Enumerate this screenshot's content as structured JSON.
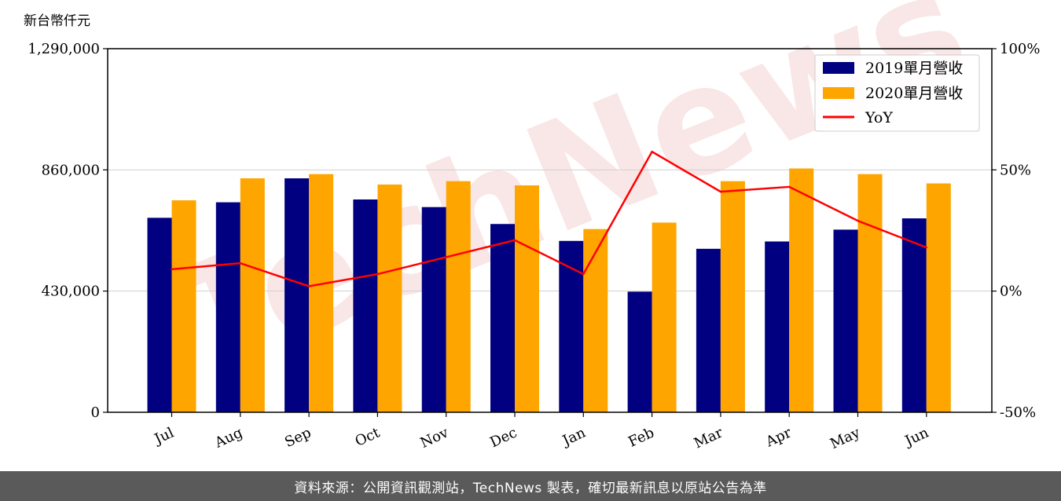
{
  "watermark": "TechNews",
  "footer": {
    "text": "資料來源：公開資訊觀測站，TechNews 製表，確切最新訊息以原站公告為準"
  },
  "colors": {
    "bar2019": "#000080",
    "bar2020": "#FFA500",
    "yoy": "#FF0000",
    "grid": "#d0d0d0"
  },
  "chart_data": {
    "type": "bar",
    "unit_label": "新台幣仟元",
    "categories": [
      "Jul",
      "Aug",
      "Sep",
      "Oct",
      "Nov",
      "Dec",
      "Jan",
      "Feb",
      "Mar",
      "Apr",
      "May",
      "Jun"
    ],
    "series": [
      {
        "name": "2019單月營收",
        "type": "bar",
        "axis": "left",
        "values": [
          690000,
          745000,
          830000,
          755000,
          728000,
          668000,
          608000,
          428000,
          580000,
          606000,
          648000,
          688000
        ]
      },
      {
        "name": "2020單月營收",
        "type": "bar",
        "axis": "left",
        "values": [
          752000,
          830000,
          845000,
          808000,
          820000,
          805000,
          650000,
          673000,
          820000,
          865000,
          845000,
          812000
        ]
      },
      {
        "name": "YoY",
        "type": "line",
        "axis": "right",
        "values": [
          9.0,
          11.5,
          2.0,
          7.0,
          14.0,
          21.0,
          7.0,
          57.5,
          41.0,
          43.0,
          29.0,
          18.0
        ]
      }
    ],
    "y_left": {
      "ylim": [
        0,
        1290000
      ],
      "ticks": [
        0,
        430000,
        860000,
        1290000
      ],
      "tick_labels": [
        "0",
        "430,000",
        "860,000",
        "1,290,000"
      ]
    },
    "y_right": {
      "ylim": [
        -50,
        100
      ],
      "ticks": [
        -50,
        0,
        50,
        100
      ],
      "tick_labels": [
        "-50%",
        "0%",
        "50%",
        "100%"
      ]
    },
    "grid": "horizontal",
    "legend_position": "top-right"
  }
}
